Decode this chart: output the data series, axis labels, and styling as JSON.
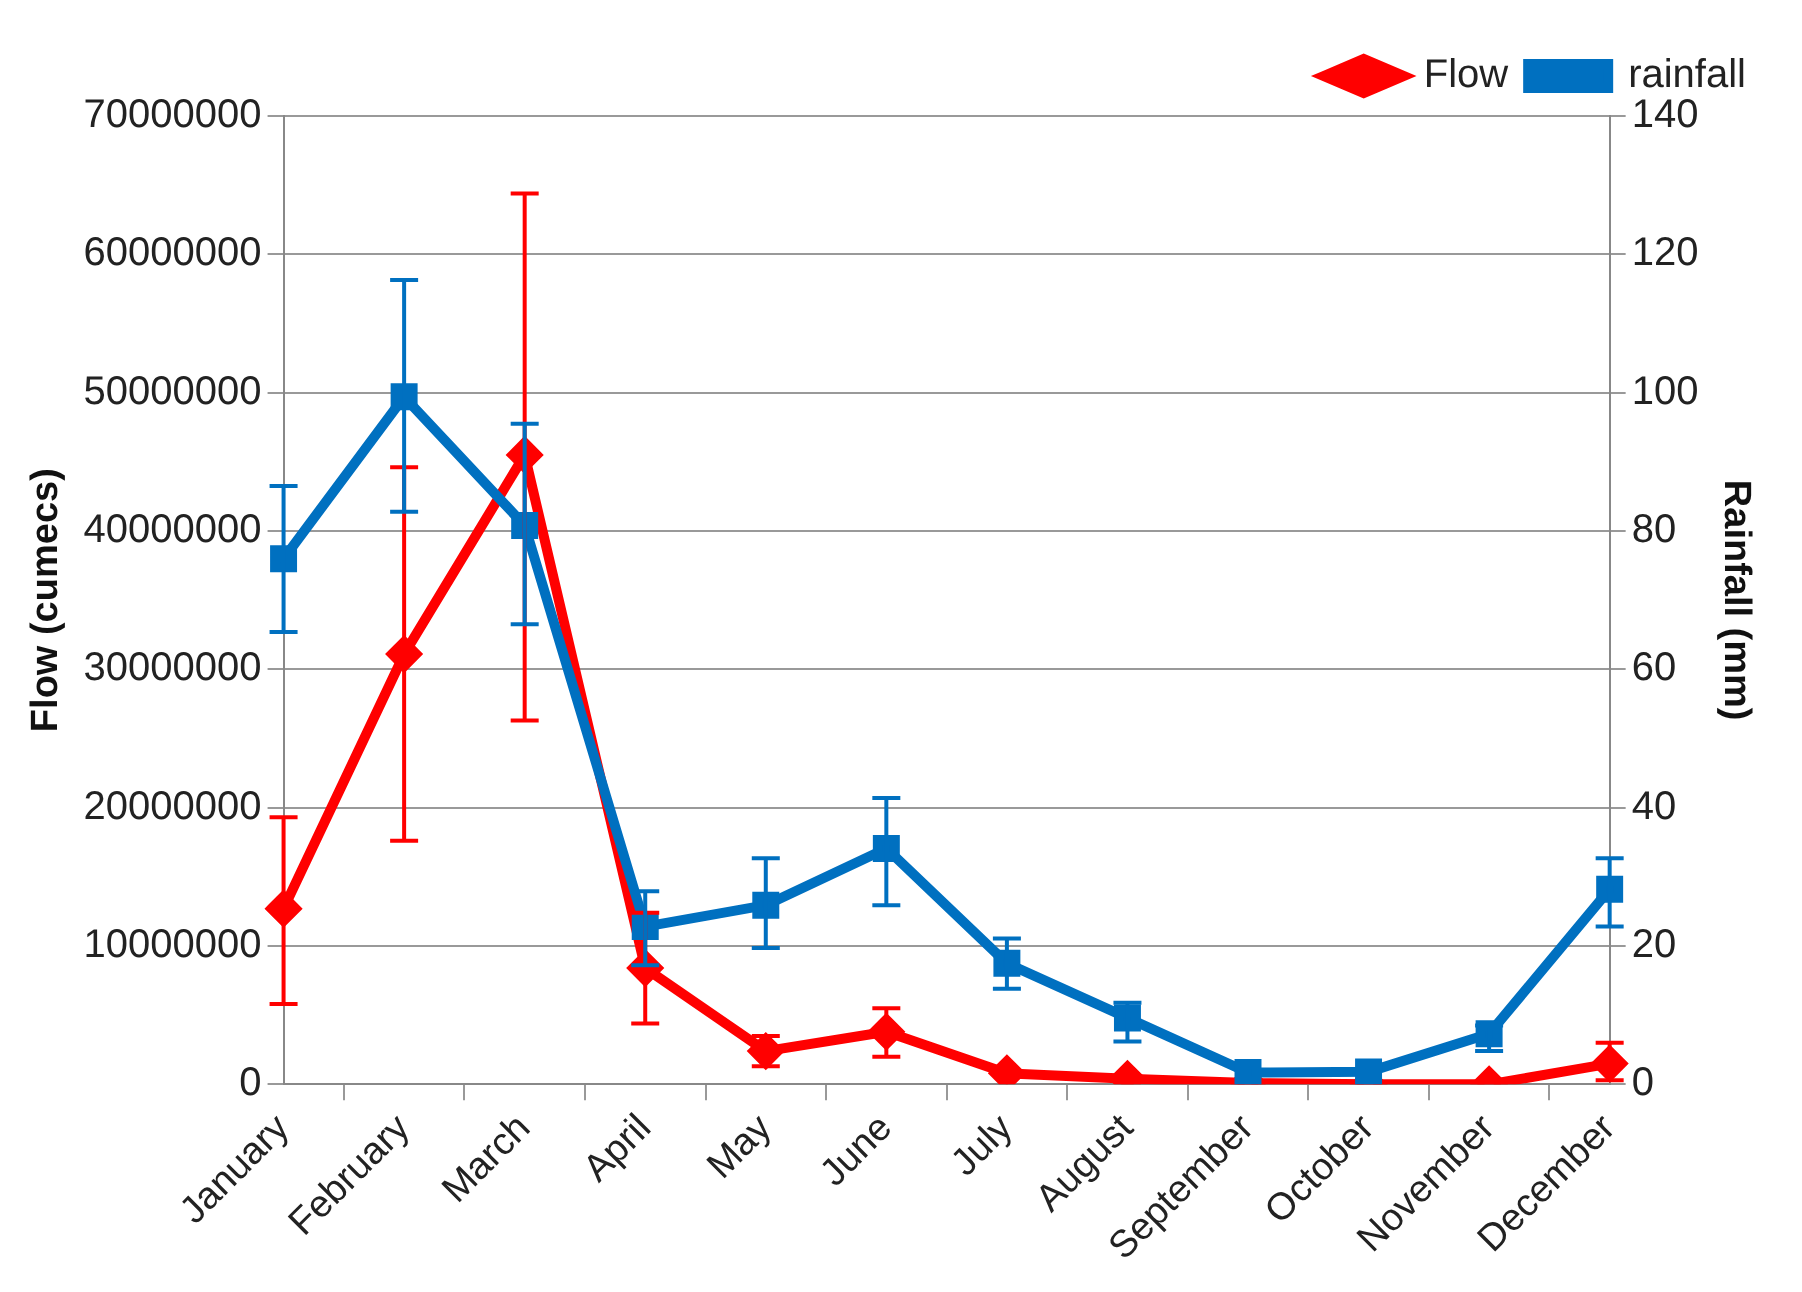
{
  "chart_data": {
    "type": "line",
    "ylabel": "Flow (cumecs)",
    "y2label": "Rainfall (mm)",
    "categories": [
      "January",
      "February",
      "March",
      "April",
      "May",
      "June",
      "July",
      "August",
      "September",
      "October",
      "November",
      "December"
    ],
    "series": [
      {
        "name": "Flow",
        "color": "#ff0000",
        "marker": "diamond",
        "values": [
          12700000,
          31100000,
          45500000,
          8400000,
          2400000,
          3800000,
          800000,
          400000,
          100000,
          0,
          0,
          1500000
        ],
        "errors": [
          [
            5800000,
            19300000
          ],
          [
            17600000,
            44600000
          ],
          [
            26300000,
            64400000
          ],
          [
            4400000,
            12400000
          ],
          [
            1300000,
            3500000
          ],
          [
            2000000,
            5500000
          ],
          null,
          null,
          null,
          null,
          null,
          [
            300000,
            3000000
          ]
        ]
      },
      {
        "name": "rainfall",
        "color": "#0070c0",
        "marker": "square",
        "axis": "y2",
        "values": [
          76,
          99.4,
          80.8,
          22.8,
          25.9,
          34.1,
          17.5,
          9.6,
          1.7,
          1.8,
          7.3,
          28.2
        ],
        "errors": [
          [
            65.4,
            86.5
          ],
          [
            82.8,
            116.3
          ],
          [
            66.5,
            95.5
          ],
          [
            17.2,
            27.9
          ],
          [
            19.7,
            32.7
          ],
          [
            25.9,
            41.4
          ],
          [
            13.8,
            21.1
          ],
          [
            6.2,
            11.8
          ],
          null,
          null,
          [
            4.8,
            8.5
          ],
          [
            22.8,
            32.7
          ]
        ]
      }
    ],
    "ylim": [
      0,
      70000000
    ],
    "yticks": [
      0,
      10000000,
      20000000,
      30000000,
      40000000,
      50000000,
      60000000,
      70000000
    ],
    "y2lim": [
      0,
      140
    ],
    "y2ticks": [
      0,
      20,
      40,
      60,
      80,
      100,
      120,
      140
    ],
    "grid": "y",
    "legend": "top right",
    "line_style": "solid"
  }
}
